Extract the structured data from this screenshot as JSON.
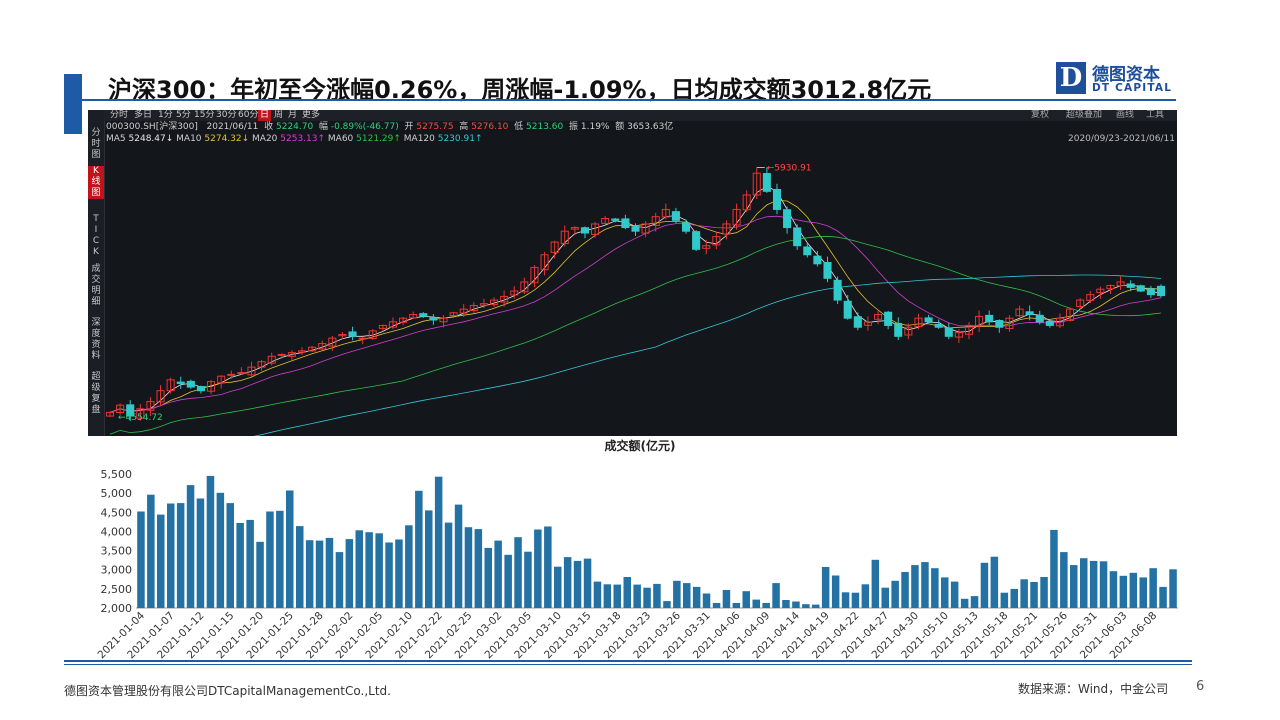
{
  "slide": {
    "title": "沪深300：年初至今涨幅0.26%，周涨幅-1.09%，日均成交额3012.8亿元",
    "logo_cn": "德图资本",
    "logo_en": "DT CAPITAL",
    "logo_mark": "D",
    "footer_left": "德图资本管理股份有限公司DTCapitalManagementCo.,Ltd.",
    "footer_right": "数据来源：Wind，中金公司",
    "page_number": "6",
    "accent_color": "#1f5aa6"
  },
  "kline": {
    "tabs": [
      "分时",
      "多日",
      "1分",
      "5分",
      "15分",
      "30分",
      "60分",
      "日",
      "周",
      "月",
      "更多"
    ],
    "active_tab": "日",
    "right_tabs": [
      "复权",
      "超级叠加",
      "画线",
      "工具"
    ],
    "side_items": [
      "分时图",
      "K线图",
      "TICK",
      "成交明细",
      "深度资料",
      "超级复盘"
    ],
    "active_side": "K线图",
    "info_line1": {
      "code": "000300.SH[沪深300]",
      "date": "2021/06/11",
      "close_label": "收",
      "close": "5224.70",
      "change_label": "幅",
      "change": "-0.89%(-46.77)",
      "open_label": "开",
      "open": "5275.75",
      "high_label": "高",
      "high": "5276.10",
      "low_label": "低",
      "low": "5213.60",
      "amp_label": "振",
      "amp": "1.19%",
      "amount_label": "额",
      "amount": "3653.63亿"
    },
    "ma_legend": [
      {
        "label": "MA5",
        "value": "5248.47↓",
        "color": "#e8e8e8"
      },
      {
        "label": "MA10",
        "value": "5274.32↓",
        "color": "#e6c229"
      },
      {
        "label": "MA20",
        "value": "5253.13↑",
        "color": "#d23fd2"
      },
      {
        "label": "MA60",
        "value": "5121.29↑",
        "color": "#2fbf4a"
      },
      {
        "label": "MA120",
        "value": "5230.91↑",
        "color": "#34c6d6"
      }
    ],
    "date_range": "2020/09/23-2021/06/11",
    "annotations": {
      "high": "5930.91",
      "low": "4554.72"
    },
    "colors": {
      "up": "#e8352f",
      "down": "#31c9c9",
      "background": "#13161b"
    }
  },
  "chart_data": [
    {
      "type": "candlestick",
      "title": "",
      "series_name": "000300.SH[沪深300]",
      "x_range": [
        "2020/09/23",
        "2021/06/11"
      ],
      "y_range_estimate": [
        4450,
        6050
      ],
      "max": 5930.91,
      "min": 4554.72,
      "close_path_estimate": [
        4580,
        4620,
        4560,
        4600,
        4640,
        4700,
        4760,
        4740,
        4720,
        4700,
        4750,
        4780,
        4790,
        4800,
        4830,
        4860,
        4890,
        4900,
        4910,
        4920,
        4940,
        4960,
        4990,
        5010,
        5000,
        4990,
        5030,
        5060,
        5080,
        5100,
        5120,
        5110,
        5090,
        5100,
        5130,
        5150,
        5170,
        5180,
        5200,
        5220,
        5250,
        5300,
        5380,
        5450,
        5520,
        5580,
        5600,
        5570,
        5620,
        5650,
        5640,
        5600,
        5580,
        5620,
        5660,
        5700,
        5640,
        5580,
        5480,
        5500,
        5550,
        5620,
        5700,
        5780,
        5900,
        5800,
        5700,
        5600,
        5500,
        5450,
        5400,
        5320,
        5200,
        5100,
        5050,
        5080,
        5120,
        5060,
        5000,
        5050,
        5100,
        5080,
        5050,
        5000,
        5020,
        5060,
        5110,
        5080,
        5050,
        5100,
        5150,
        5120,
        5080,
        5060,
        5100,
        5150,
        5200,
        5230,
        5260,
        5280,
        5300,
        5270,
        5250,
        5230,
        5224.7
      ],
      "moving_averages": [
        "MA5",
        "MA10",
        "MA20",
        "MA60",
        "MA120"
      ]
    },
    {
      "type": "bar",
      "title": "成交额(亿元)",
      "xlabel": "",
      "ylabel": "",
      "ylim": [
        2000,
        5500
      ],
      "yticks": [
        "2,000",
        "2,500",
        "3,000",
        "3,500",
        "4,000",
        "4,500",
        "5,000",
        "5,500"
      ],
      "tick_labels": [
        "2021-01-04",
        "2021-01-07",
        "2021-01-12",
        "2021-01-15",
        "2021-01-20",
        "2021-01-25",
        "2021-01-28",
        "2021-02-02",
        "2021-02-05",
        "2021-02-10",
        "2021-02-22",
        "2021-02-25",
        "2021-03-02",
        "2021-03-05",
        "2021-03-10",
        "2021-03-15",
        "2021-03-18",
        "2021-03-23",
        "2021-03-26",
        "2021-03-31",
        "2021-04-06",
        "2021-04-09",
        "2021-04-14",
        "2021-04-19",
        "2021-04-22",
        "2021-04-27",
        "2021-04-30",
        "2021-05-10",
        "2021-05-13",
        "2021-05-18",
        "2021-05-21",
        "2021-05-26",
        "2021-05-31",
        "2021-06-03",
        "2021-06-08"
      ],
      "values": [
        4520,
        4960,
        4440,
        4730,
        4740,
        5210,
        4860,
        5450,
        5010,
        4740,
        4220,
        4300,
        3730,
        4520,
        4540,
        5070,
        4140,
        3770,
        3760,
        3830,
        3460,
        3800,
        4030,
        3980,
        3950,
        3710,
        3790,
        4160,
        5060,
        4550,
        5430,
        4230,
        4700,
        4110,
        4060,
        3570,
        3760,
        3390,
        3850,
        3470,
        4050,
        4130,
        3080,
        3330,
        3230,
        3290,
        2690,
        2620,
        2610,
        2810,
        2610,
        2530,
        2630,
        2180,
        2710,
        2650,
        2550,
        2380,
        2130,
        2470,
        2130,
        2440,
        2220,
        2130,
        2650,
        2210,
        2170,
        2100,
        2090,
        3070,
        2850,
        2410,
        2400,
        2620,
        3260,
        2530,
        2710,
        2940,
        3120,
        3200,
        3040,
        2800,
        2690,
        2240,
        2310,
        3180,
        3340,
        2400,
        2500,
        2750,
        2680,
        2810,
        4040,
        3460,
        3120,
        3300,
        3230,
        3220,
        2960,
        2840,
        2920,
        2800,
        3040,
        2550,
        3010
      ]
    }
  ]
}
